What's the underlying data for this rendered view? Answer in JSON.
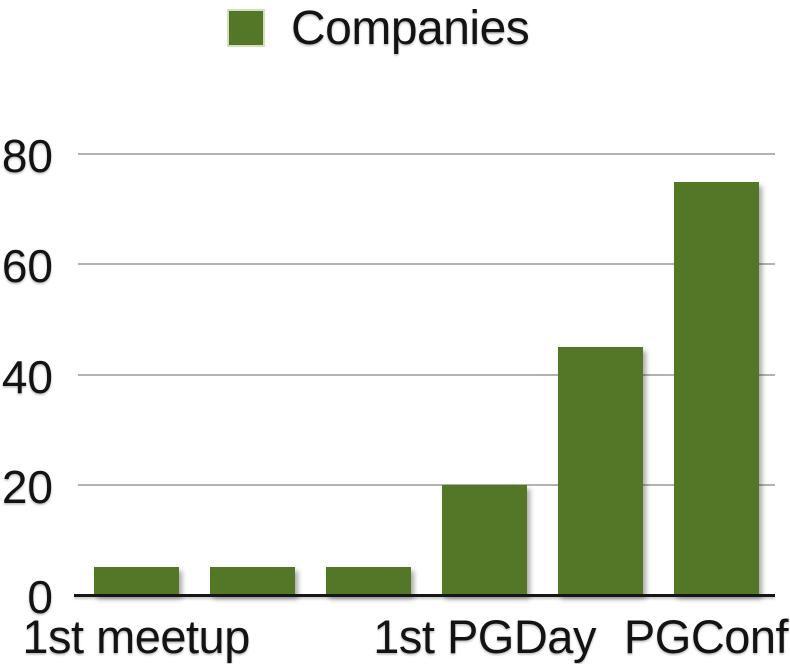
{
  "chart_data": {
    "type": "bar",
    "title": "",
    "legend": {
      "position": "top",
      "label": "Companies"
    },
    "series": [
      {
        "name": "Companies",
        "values": [
          5,
          5,
          5,
          20,
          45,
          75
        ]
      }
    ],
    "x_tick_labels": [
      {
        "bar_index": 0,
        "label": "1st meetup"
      },
      {
        "bar_index": 3,
        "label": "1st PGDay"
      },
      {
        "bar_index": 5,
        "label": "PGConf"
      }
    ],
    "ylim": [
      0,
      80
    ],
    "yticks": [
      0,
      20,
      40,
      60,
      80
    ],
    "grid": true,
    "colors": {
      "bar": "#537627",
      "gridline": "#b2b2b2",
      "axis": "#161616",
      "text": "#131313",
      "background": "#ffffff"
    }
  }
}
